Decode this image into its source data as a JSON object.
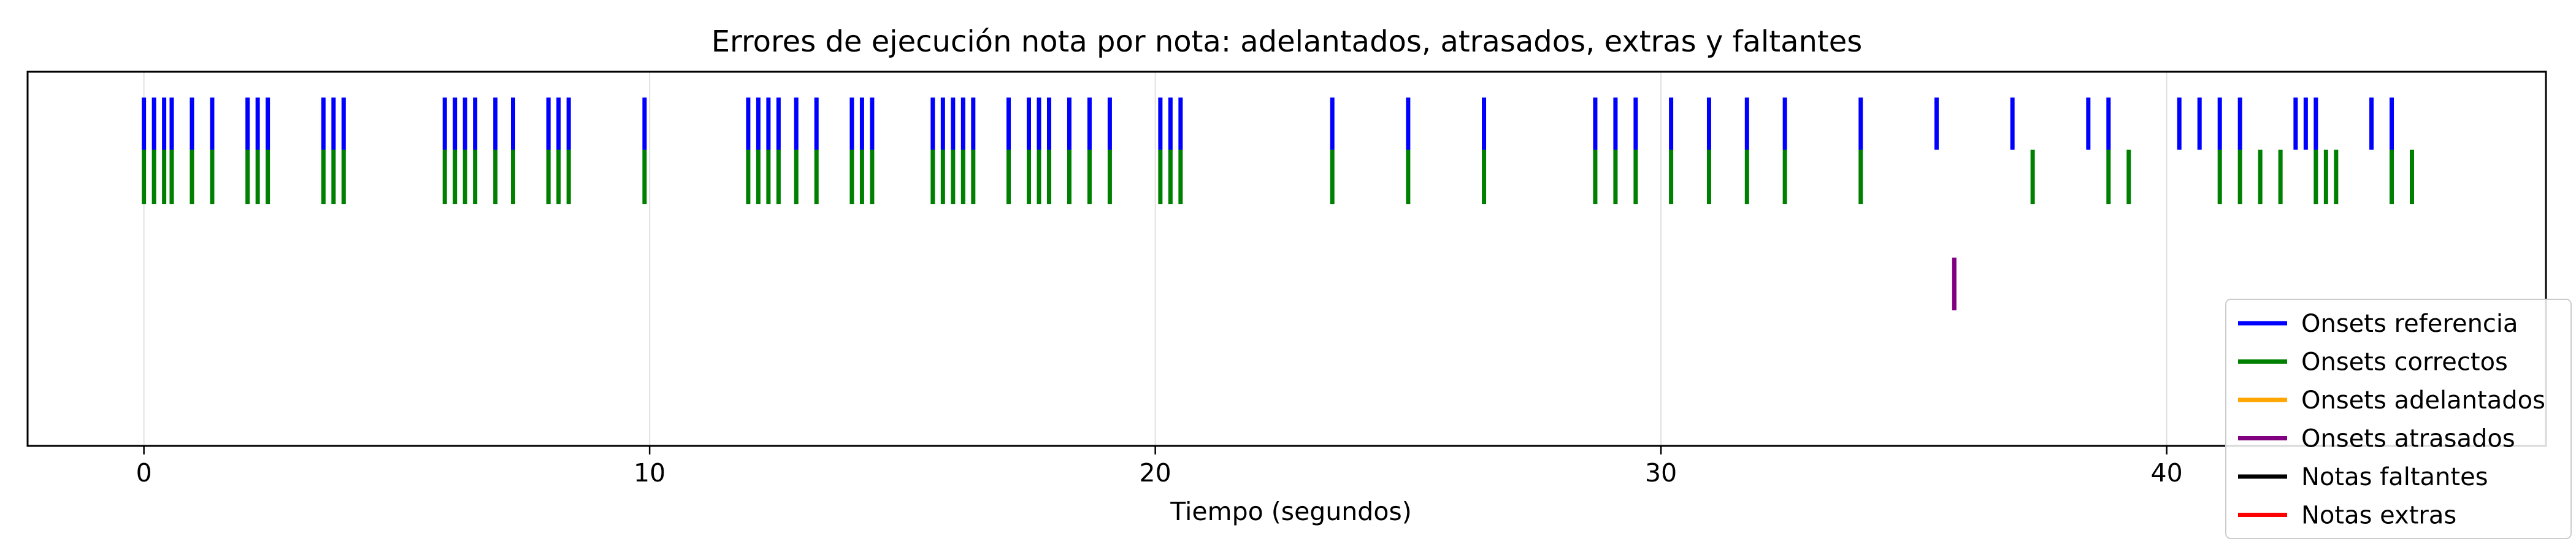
{
  "chart_data": {
    "type": "event-plot",
    "title": "Errores de ejecución nota por nota: adelantados, atrasados, extras y faltantes",
    "xlabel": "Tiempo (segundos)",
    "ylabel": "",
    "xlim": [
      -2.3,
      47.5
    ],
    "xticks": [
      0,
      10,
      20,
      30,
      40
    ],
    "xtick_labels": [
      "0",
      "10",
      "20",
      "30",
      "40"
    ],
    "grid": "vertical",
    "legend_position": "lower-right",
    "series": [
      {
        "name": "Onsets referencia",
        "color": "#0000ff",
        "values": [
          0.0,
          0.2,
          0.4,
          0.55,
          0.95,
          1.35,
          2.05,
          2.25,
          2.45,
          3.55,
          3.75,
          3.95,
          5.95,
          6.15,
          6.35,
          6.55,
          6.95,
          7.3,
          8.0,
          8.2,
          8.4,
          9.9,
          11.95,
          12.15,
          12.35,
          12.55,
          12.9,
          13.3,
          14.0,
          14.2,
          14.4,
          15.6,
          15.8,
          16.0,
          16.2,
          16.4,
          17.1,
          17.5,
          17.7,
          17.9,
          18.3,
          18.7,
          19.1,
          20.1,
          20.3,
          20.5,
          23.5,
          25.0,
          26.5,
          28.7,
          29.1,
          29.5,
          30.2,
          30.95,
          31.7,
          32.45,
          33.95,
          35.45,
          36.95,
          38.45,
          38.85,
          40.25,
          40.65,
          41.05,
          41.45,
          42.55,
          42.75,
          42.95,
          44.05,
          44.45
        ]
      },
      {
        "name": "Onsets correctos",
        "color": "#008000",
        "values": [
          0.0,
          0.2,
          0.4,
          0.55,
          0.95,
          1.35,
          2.05,
          2.25,
          2.45,
          3.55,
          3.75,
          3.95,
          5.95,
          6.15,
          6.35,
          6.55,
          6.95,
          7.3,
          8.0,
          8.2,
          8.4,
          9.9,
          11.95,
          12.15,
          12.35,
          12.55,
          12.9,
          13.3,
          14.0,
          14.2,
          14.4,
          15.6,
          15.8,
          16.0,
          16.2,
          16.4,
          17.1,
          17.5,
          17.7,
          17.9,
          18.3,
          18.7,
          19.1,
          20.1,
          20.3,
          20.5,
          23.5,
          25.0,
          26.5,
          28.7,
          29.1,
          29.5,
          30.2,
          30.95,
          31.7,
          32.45,
          33.95,
          37.35,
          38.85,
          39.25,
          41.05,
          41.45,
          41.85,
          42.25,
          42.95,
          43.15,
          43.35,
          44.45,
          44.85
        ]
      },
      {
        "name": "Onsets adelantados",
        "color": "#ffa500",
        "values": []
      },
      {
        "name": "Onsets atrasados",
        "color": "#800080",
        "values": [
          35.8
        ]
      },
      {
        "name": "Notas faltantes",
        "color": "#000000",
        "values": []
      },
      {
        "name": "Notas extras",
        "color": "#ff0000",
        "values": []
      }
    ]
  }
}
